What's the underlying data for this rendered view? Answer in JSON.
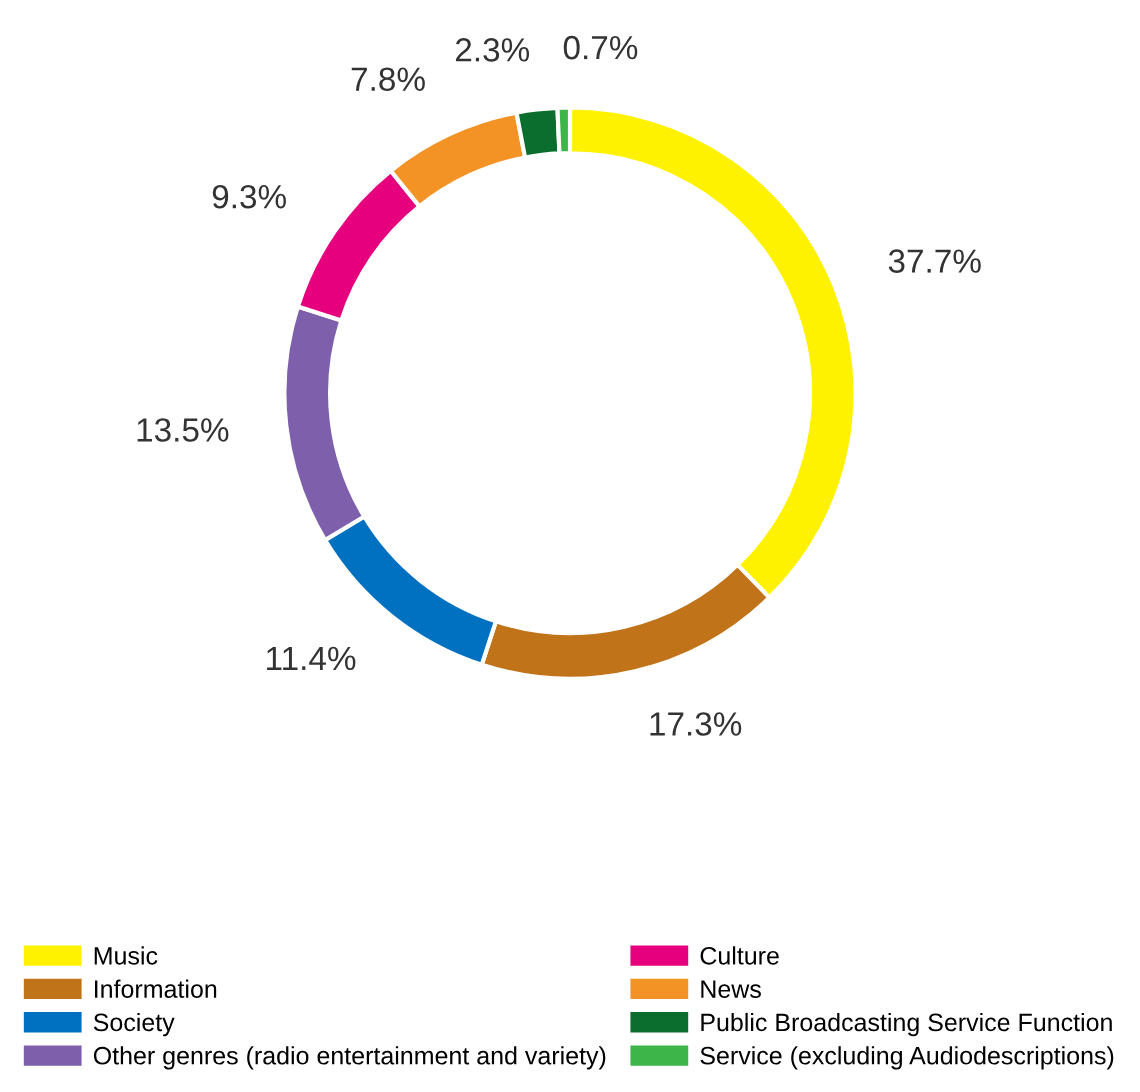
{
  "chart_data": {
    "type": "donut",
    "categories": [
      "Music",
      "Information",
      "Society",
      "Other genres (radio entertainment and variety)",
      "Culture",
      "News",
      "Public Broadcasting Service Function",
      "Service (excluding Audiodescriptions)"
    ],
    "values": [
      37.7,
      17.3,
      11.4,
      13.5,
      9.3,
      7.8,
      2.3,
      0.7
    ],
    "value_labels": [
      "37.7%",
      "17.3%",
      "11.4%",
      "13.5%",
      "9.3%",
      "7.8%",
      "2.3%",
      "0.7%"
    ],
    "colors": [
      "#fff200",
      "#c07318",
      "#0070c0",
      "#7d5fac",
      "#e6007e",
      "#f39325",
      "#0b6e2e",
      "#3db549"
    ],
    "legend": "bottom"
  }
}
